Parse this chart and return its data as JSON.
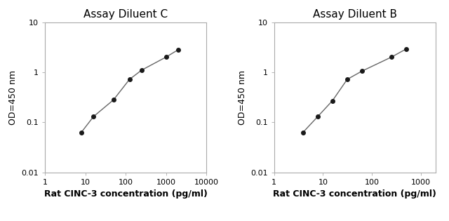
{
  "left": {
    "title": "Assay Diluent C",
    "x": [
      8,
      16,
      50,
      125,
      250,
      1000,
      2000
    ],
    "y": [
      0.063,
      0.13,
      0.28,
      0.72,
      1.1,
      2.0,
      2.8
    ],
    "xlim": [
      1,
      10000
    ],
    "ylim": [
      0.01,
      10
    ],
    "xticks": [
      1,
      10,
      100,
      1000,
      10000
    ],
    "xtick_labels": [
      "1",
      "10",
      "100",
      "1000",
      "10000"
    ],
    "yticks": [
      0.01,
      0.1,
      1,
      10
    ],
    "ytick_labels": [
      "0.01",
      "0.1",
      "1",
      "10"
    ],
    "xlabel": "Rat CINC-3 concentration (pg/ml)",
    "ylabel": "OD=450 nm"
  },
  "right": {
    "title": "Assay Diluent B",
    "x": [
      3.9,
      7.8,
      15.6,
      31.25,
      62.5,
      250,
      500
    ],
    "y": [
      0.063,
      0.13,
      0.27,
      0.72,
      1.05,
      2.0,
      2.9
    ],
    "xlim": [
      1,
      2000
    ],
    "ylim": [
      0.01,
      10
    ],
    "xticks": [
      1,
      10,
      100,
      1000
    ],
    "xtick_labels": [
      "1",
      "10",
      "100",
      "1000"
    ],
    "yticks": [
      0.01,
      0.1,
      1,
      10
    ],
    "ytick_labels": [
      "0.01",
      "0.1",
      "1",
      "10"
    ],
    "xlabel": "Rat CINC-3 concentration (pg/ml)",
    "ylabel": "OD=450 nm"
  },
  "line_color": "#666666",
  "marker_color": "#1a1a1a",
  "marker_size": 4,
  "line_width": 1.0,
  "bg_color": "#ffffff",
  "title_fontsize": 11,
  "label_fontsize": 9,
  "tick_fontsize": 8,
  "spine_color": "#aaaaaa"
}
